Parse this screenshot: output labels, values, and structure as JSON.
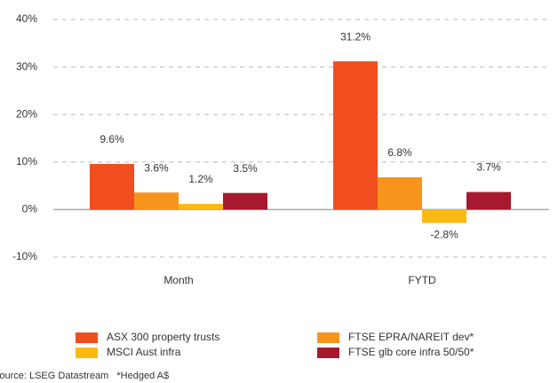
{
  "chart_data": {
    "type": "bar",
    "categories": [
      "Month",
      "FYTD"
    ],
    "series": [
      {
        "name": "ASX 300 property trusts",
        "color": "#f04e1e",
        "values": [
          9.6,
          31.2
        ],
        "value_labels": [
          "9.6%",
          "31.2%"
        ]
      },
      {
        "name": "FTSE EPRA/NAREIT dev*",
        "color": "#f7941d",
        "values": [
          3.6,
          6.8
        ],
        "value_labels": [
          "3.6%",
          "6.8%"
        ]
      },
      {
        "name": "MSCI Aust infra",
        "color": "#fdb913",
        "values": [
          1.2,
          -2.8
        ],
        "value_labels": [
          "1.2%",
          "-2.8%"
        ]
      },
      {
        "name": "FTSE glb core infra 50/50*",
        "color": "#a6192e",
        "values": [
          3.5,
          3.7
        ],
        "value_labels": [
          "3.5%",
          "3.7%"
        ]
      }
    ],
    "ylim": [
      -10,
      40
    ],
    "yticks": [
      {
        "value": -10,
        "label": "-10%"
      },
      {
        "value": 0,
        "label": "0%"
      },
      {
        "value": 10,
        "label": "10%"
      },
      {
        "value": 20,
        "label": "20%"
      },
      {
        "value": 30,
        "label": "30%"
      },
      {
        "value": 40,
        "label": "40%"
      }
    ],
    "grid": true,
    "source": "Source: LSEG Datastream   *Hedged A$"
  }
}
